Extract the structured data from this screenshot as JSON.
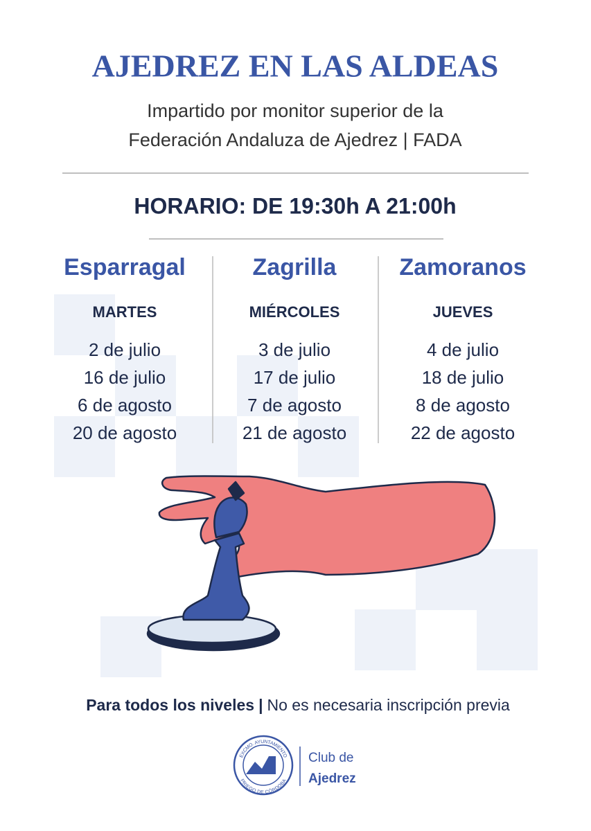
{
  "header": {
    "title": "AJEDREZ EN LAS ALDEAS",
    "subtitle": [
      "Impartido por monitor superior de la",
      "Federación Andaluza de Ajedrez | FADA"
    ]
  },
  "schedule": "HORARIO: DE 19:30h A 21:00h",
  "columns": [
    {
      "name": "Esparragal",
      "day": "MARTES",
      "dates": [
        "2 de julio",
        "16 de julio",
        "6 de agosto",
        "20 de agosto"
      ]
    },
    {
      "name": "Zagrilla",
      "day": "MIÉRCOLES",
      "dates": [
        "3 de julio",
        "17 de julio",
        "7 de agosto",
        "21 de agosto"
      ]
    },
    {
      "name": "Zamoranos",
      "day": "JUEVES",
      "dates": [
        "4 de julio",
        "18 de julio",
        "8 de agosto",
        "22 de agosto"
      ]
    }
  ],
  "footer": {
    "bold": "Para todos los niveles",
    "separator": "|",
    "rest": "No es necesaria inscripción previa"
  },
  "logo": {
    "ring_top": "EXCMO. AYUNTAMIENTO",
    "ring_bottom": "PRIEGO DE CÓRDOBA",
    "line1": "Club de",
    "line2": "Ajedrez"
  }
}
